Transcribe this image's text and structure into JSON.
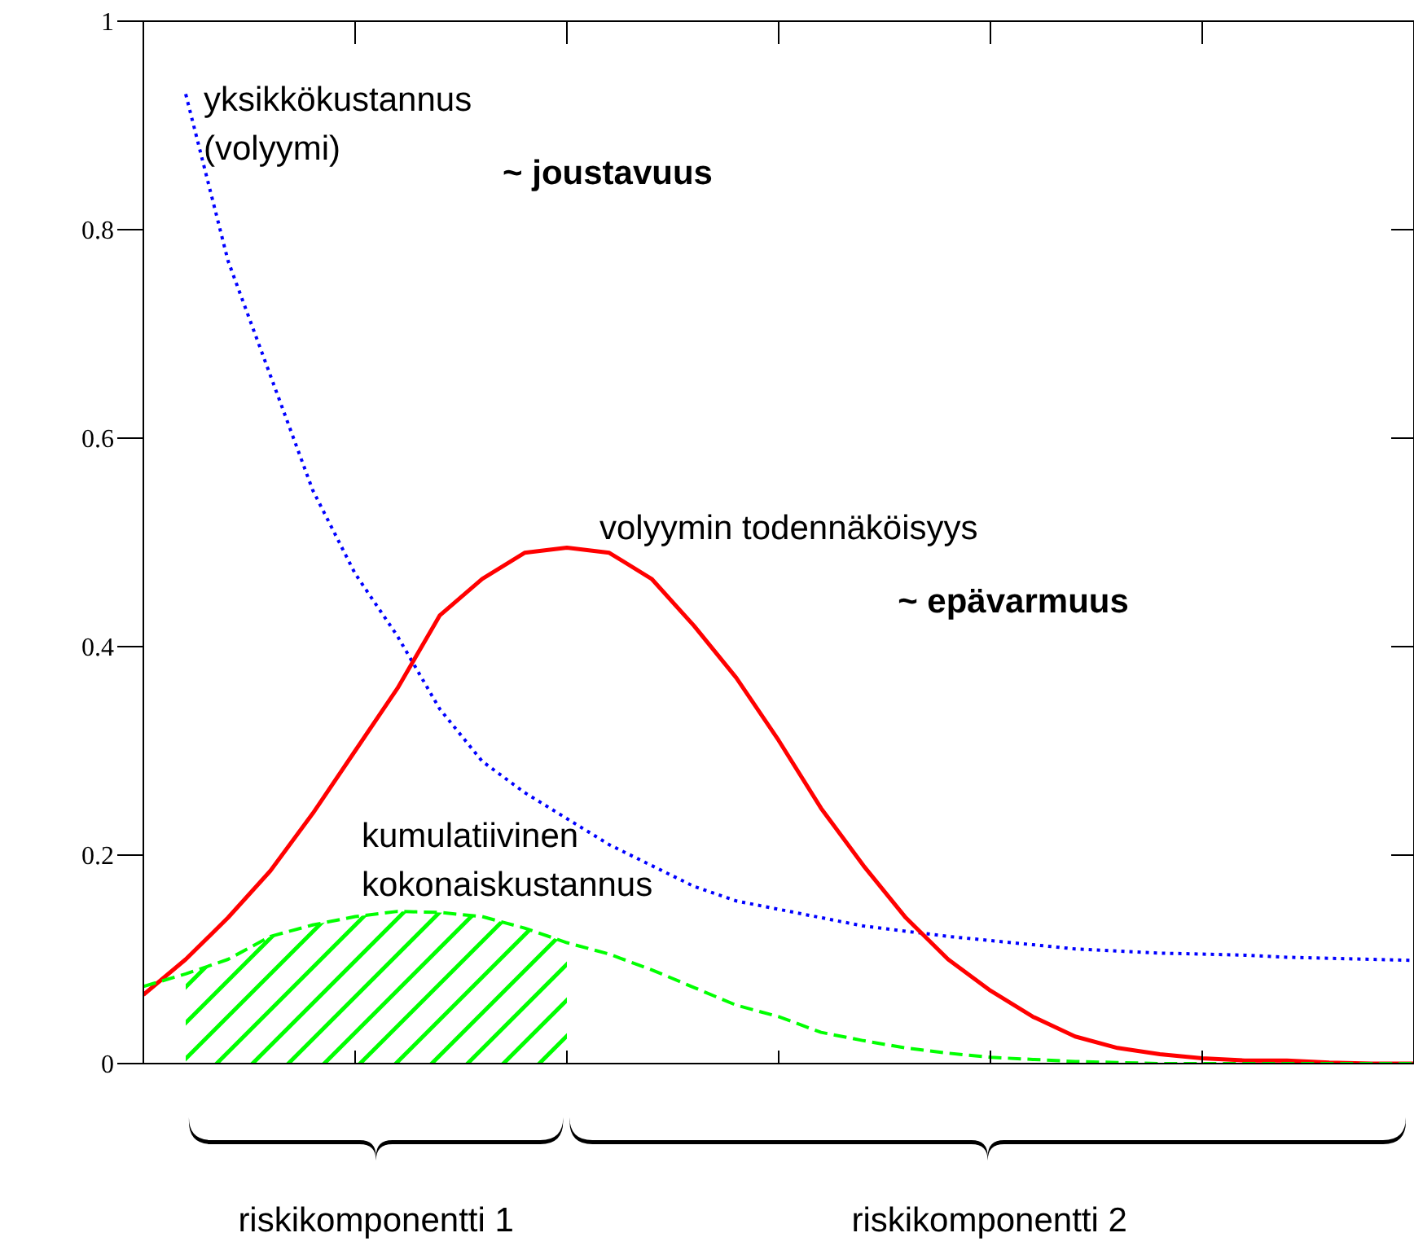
{
  "chart_data": {
    "type": "line",
    "categories": [
      null,
      null,
      null,
      null,
      null,
      null,
      null,
      null,
      null,
      null,
      null,
      null,
      null,
      null,
      null,
      null,
      null,
      null,
      null,
      null,
      null,
      null,
      null,
      null,
      null,
      null,
      null,
      null,
      null,
      null,
      null
    ],
    "ylim": [
      0,
      1
    ],
    "yticks": [
      0,
      0.2,
      0.4,
      0.6,
      0.8,
      1
    ],
    "tick_labels": "y",
    "annotations": [
      "~ joustavuus",
      "~ epävarmuus",
      "riskikomponentti 1",
      "riskikomponentti 2"
    ],
    "series": [
      {
        "name": "yksikkökustannus (volyymi)",
        "color": "#0000ff",
        "line_style": "dotted",
        "values": [
          null,
          0.93,
          0.77,
          0.66,
          0.55,
          0.47,
          0.41,
          0.34,
          0.29,
          0.26,
          0.235,
          0.21,
          0.19,
          0.17,
          0.156,
          0.148,
          0.14,
          0.132,
          0.127,
          0.122,
          0.118,
          0.114,
          0.11,
          0.108,
          0.106,
          0.105,
          0.104,
          0.102,
          0.101,
          0.1,
          0.099
        ]
      },
      {
        "name": "volyymin todennäköisyys",
        "color": "#ff0000",
        "line_style": "solid",
        "values": [
          0.066,
          0.1,
          0.14,
          0.185,
          0.24,
          0.3,
          0.36,
          0.43,
          0.465,
          0.49,
          0.495,
          0.49,
          0.465,
          0.42,
          0.37,
          0.31,
          0.245,
          0.19,
          0.14,
          0.1,
          0.07,
          0.045,
          0.026,
          0.015,
          0.009,
          0.005,
          0.003,
          0.003,
          0.001,
          0,
          0
        ]
      },
      {
        "name": "kumulatiivinen kokonaiskustannus",
        "color": "#00ff00",
        "line_style": "dashed",
        "values": [
          0.074,
          0.086,
          0.1,
          0.122,
          0.133,
          0.141,
          0.146,
          0.145,
          0.141,
          0.13,
          0.116,
          0.105,
          0.09,
          0.073,
          0.056,
          0.045,
          0.03,
          0.022,
          0.015,
          0.01,
          0.006,
          0.004,
          0.002,
          0.001,
          0,
          0,
          0,
          0,
          0,
          0,
          0
        ]
      },
      {
        "type": "area",
        "color": "#00ff00",
        "values": [
          null,
          0.086,
          0.1,
          0.122,
          0.133,
          0.141,
          0.146,
          0.145,
          0.141,
          0.13,
          0.116,
          null,
          null,
          null,
          null,
          null,
          null,
          null,
          null,
          null,
          null,
          null,
          null,
          null,
          null,
          null,
          null,
          null,
          null,
          null,
          null
        ]
      }
    ]
  }
}
